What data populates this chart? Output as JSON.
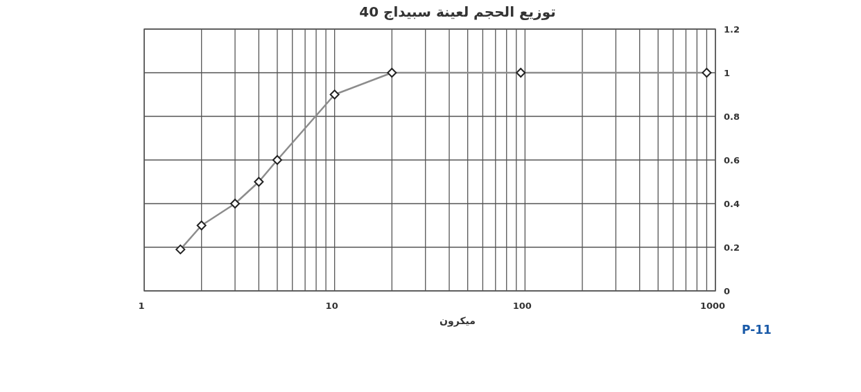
{
  "chart_data": {
    "type": "line",
    "title": "توزيع الحجم لعينة سبيداج 40",
    "xlabel": "ميكرون",
    "log": "x",
    "x": [
      1.55,
      2,
      3,
      4,
      5,
      10,
      20,
      95,
      900
    ],
    "series": [
      {
        "color": "#8c8c8c",
        "values": [
          0.19,
          0.3,
          0.4,
          0.5,
          0.6,
          0.9,
          1,
          1,
          1
        ]
      }
    ],
    "xlim": [
      1,
      1000
    ],
    "xticks": [
      1,
      {
        "value": 2,
        "label": null
      },
      {
        "value": 3,
        "label": null
      },
      {
        "value": 4,
        "label": null
      },
      {
        "value": 5,
        "label": null
      },
      {
        "value": 6,
        "label": null
      },
      {
        "value": 7,
        "label": null
      },
      {
        "value": 8,
        "label": null
      },
      {
        "value": 9,
        "label": null
      },
      10,
      {
        "value": 20,
        "label": null
      },
      {
        "value": 30,
        "label": null
      },
      {
        "value": 40,
        "label": null
      },
      {
        "value": 50,
        "label": null
      },
      {
        "value": 60,
        "label": null
      },
      {
        "value": 70,
        "label": null
      },
      {
        "value": 80,
        "label": null
      },
      {
        "value": 90,
        "label": null
      },
      100,
      {
        "value": 200,
        "label": null
      },
      {
        "value": 300,
        "label": null
      },
      {
        "value": 400,
        "label": null
      },
      {
        "value": 500,
        "label": null
      },
      {
        "value": 600,
        "label": null
      },
      {
        "value": 700,
        "label": null
      },
      {
        "value": 800,
        "label": null
      },
      {
        "value": 900,
        "label": null
      },
      1000
    ],
    "ylim": [
      0,
      1.2
    ],
    "yticks": [
      0,
      0.2,
      0.4,
      0.6,
      0.8,
      1,
      1.2
    ],
    "grid": true,
    "marker": "diamond",
    "line_style": "solid",
    "annotations": [
      "P-11"
    ]
  }
}
